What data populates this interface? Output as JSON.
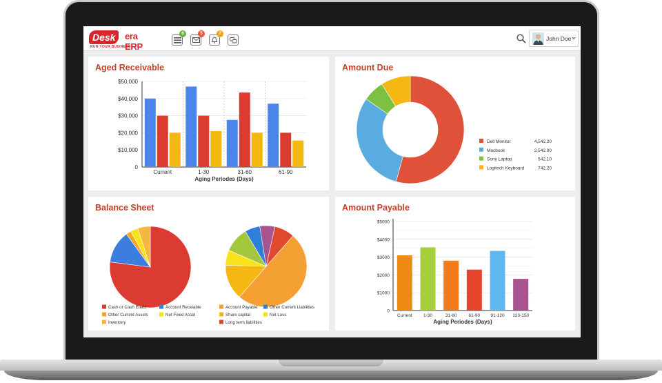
{
  "app": {
    "brand": "Desk",
    "brand_suffix": "era ERP",
    "tagline": "RUN YOUR BUSINESS",
    "brand_color": "#d8262e"
  },
  "topbar": {
    "icons": [
      {
        "name": "menu-list-icon",
        "badge": "6",
        "badge_color": "#6cb33f"
      },
      {
        "name": "mail-icon",
        "badge": "5",
        "badge_color": "#e6553a"
      },
      {
        "name": "bell-icon",
        "badge": "7",
        "badge_color": "#f1a31b"
      },
      {
        "name": "chat-icon",
        "badge": "",
        "badge_color": ""
      }
    ],
    "user_name": "John Doe"
  },
  "panels": {
    "aged_receivable": {
      "title": "Aged Receivable",
      "chart_data": {
        "type": "bar",
        "categories": [
          "Current",
          "1-30",
          "31-60",
          "61-90"
        ],
        "series": [
          {
            "values": [
              40000,
              47000,
              27500,
              37000
            ],
            "color": "#4a86e8"
          },
          {
            "values": [
              30000,
              30000,
              43500,
              20000
            ],
            "color": "#db3b30"
          },
          {
            "values": [
              20000,
              21000,
              20000,
              15500
            ],
            "color": "#f5b712"
          }
        ],
        "ylim": [
          0,
          50000
        ],
        "yticks": [
          "$50,000",
          "$40,000",
          "$30,000",
          "$20,000",
          "$10,000",
          "0"
        ],
        "xlabel": "Aging Periodes (Days)",
        "ylabel": ""
      }
    },
    "amount_due": {
      "title": "Amount Due",
      "chart_data": {
        "type": "pie",
        "donut": true,
        "labels": [
          "Dell Monitor",
          "Macbook",
          "Sony Laptop",
          "Logitech Keyboard"
        ],
        "values": [
          4542.2,
          2542.0,
          542.1,
          742.2
        ],
        "value_labels": [
          "4,542.20",
          "2,542.00",
          "542.10",
          "742.20"
        ],
        "colors": [
          "#e0513a",
          "#5aabe0",
          "#7cc142",
          "#f5b712"
        ],
        "legend": "right"
      }
    },
    "balance_sheet": {
      "title": "Balance Sheet",
      "chart_data": [
        {
          "type": "pie",
          "labels": [
            "Cash or Cash Euals",
            "Account Receiable",
            "Other Current Assets",
            "Net Fixed Asset",
            "Inventory"
          ],
          "values": [
            77,
            13,
            2,
            3,
            5
          ],
          "colors": [
            "#db3b30",
            "#3c7ee0",
            "#f5a623",
            "#f7e21b",
            "#f4b840"
          ]
        },
        {
          "type": "pie",
          "labels": [
            "Account Payable",
            "Other Current Liabilities",
            "Share capital",
            "Net Loss",
            "Long term liabilities"
          ],
          "values": [
            50,
            6,
            14,
            6,
            8
          ],
          "colors": [
            "#f5a033",
            "#2f7ed8",
            "#f5b712",
            "#f7e21b",
            "#e04a2c"
          ],
          "extra_slices": [
            {
              "value": 10,
              "color": "#a3c83e"
            },
            {
              "value": 6,
              "color": "#a8548e"
            }
          ]
        }
      ]
    },
    "amount_payable": {
      "title": "Amount Payable",
      "chart_data": {
        "type": "bar",
        "categories": [
          "Current",
          "1-30",
          "31-60",
          "61-90",
          "91-120",
          "120-150"
        ],
        "values": [
          3100,
          3550,
          2800,
          2300,
          3350,
          1780
        ],
        "colors": [
          "#f08a12",
          "#a7cf3c",
          "#f27b1c",
          "#e4462d",
          "#5fb9f0",
          "#a8548e"
        ],
        "ylim": [
          0,
          5000
        ],
        "yticks": [
          "$5000",
          "$4000",
          "$3000",
          "$2000",
          "$1000",
          "0"
        ],
        "xlabel": "Aging Periodes (Days)"
      }
    }
  }
}
